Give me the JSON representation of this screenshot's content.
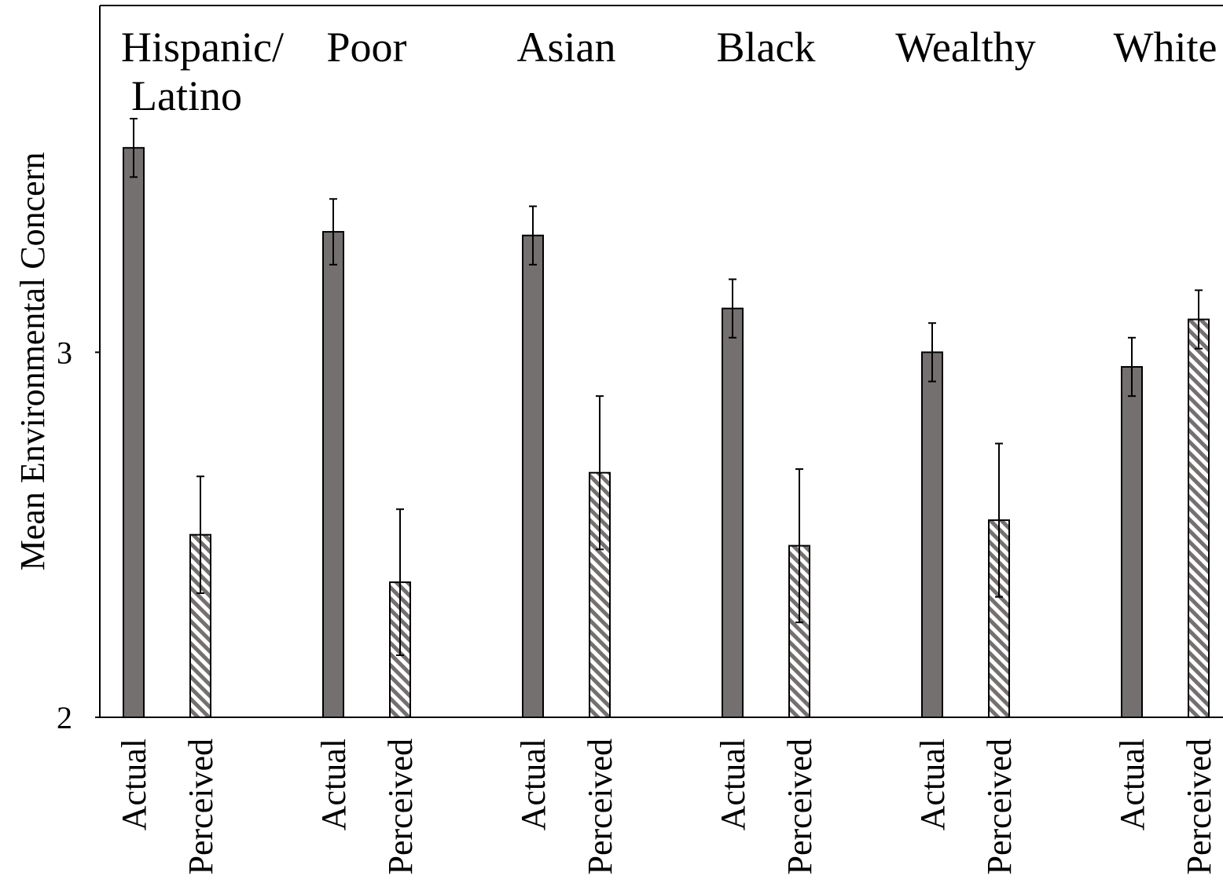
{
  "chart_data": {
    "type": "bar",
    "ylabel": "Mean Environmental Concern",
    "ylim": [
      2,
      3.95
    ],
    "yticks": [
      "2",
      "3"
    ],
    "grid": false,
    "legend": "none",
    "bar_labels": [
      "Actual",
      "Perceived"
    ],
    "groups": [
      {
        "label": [
          "Hispanic/",
          "Latino"
        ],
        "actual": 3.56,
        "actual_err": 0.08,
        "perceived": 2.5,
        "perceived_err": 0.16
      },
      {
        "label": [
          "Poor"
        ],
        "actual": 3.33,
        "actual_err": 0.09,
        "perceived": 2.37,
        "perceived_err": 0.2
      },
      {
        "label": [
          "Asian"
        ],
        "actual": 3.32,
        "actual_err": 0.08,
        "perceived": 2.67,
        "perceived_err": 0.21
      },
      {
        "label": [
          "Black"
        ],
        "actual": 3.12,
        "actual_err": 0.08,
        "perceived": 2.47,
        "perceived_err": 0.21
      },
      {
        "label": [
          "Wealthy"
        ],
        "actual": 3.0,
        "actual_err": 0.08,
        "perceived": 2.54,
        "perceived_err": 0.21
      },
      {
        "label": [
          "White"
        ],
        "actual": 2.96,
        "actual_err": 0.08,
        "perceived": 3.09,
        "perceived_err": 0.08
      }
    ],
    "colors": {
      "actual": "#747070",
      "perceived_stripe": "#747070",
      "perceived_bg": "#ffffff",
      "axis": "#000000"
    }
  }
}
